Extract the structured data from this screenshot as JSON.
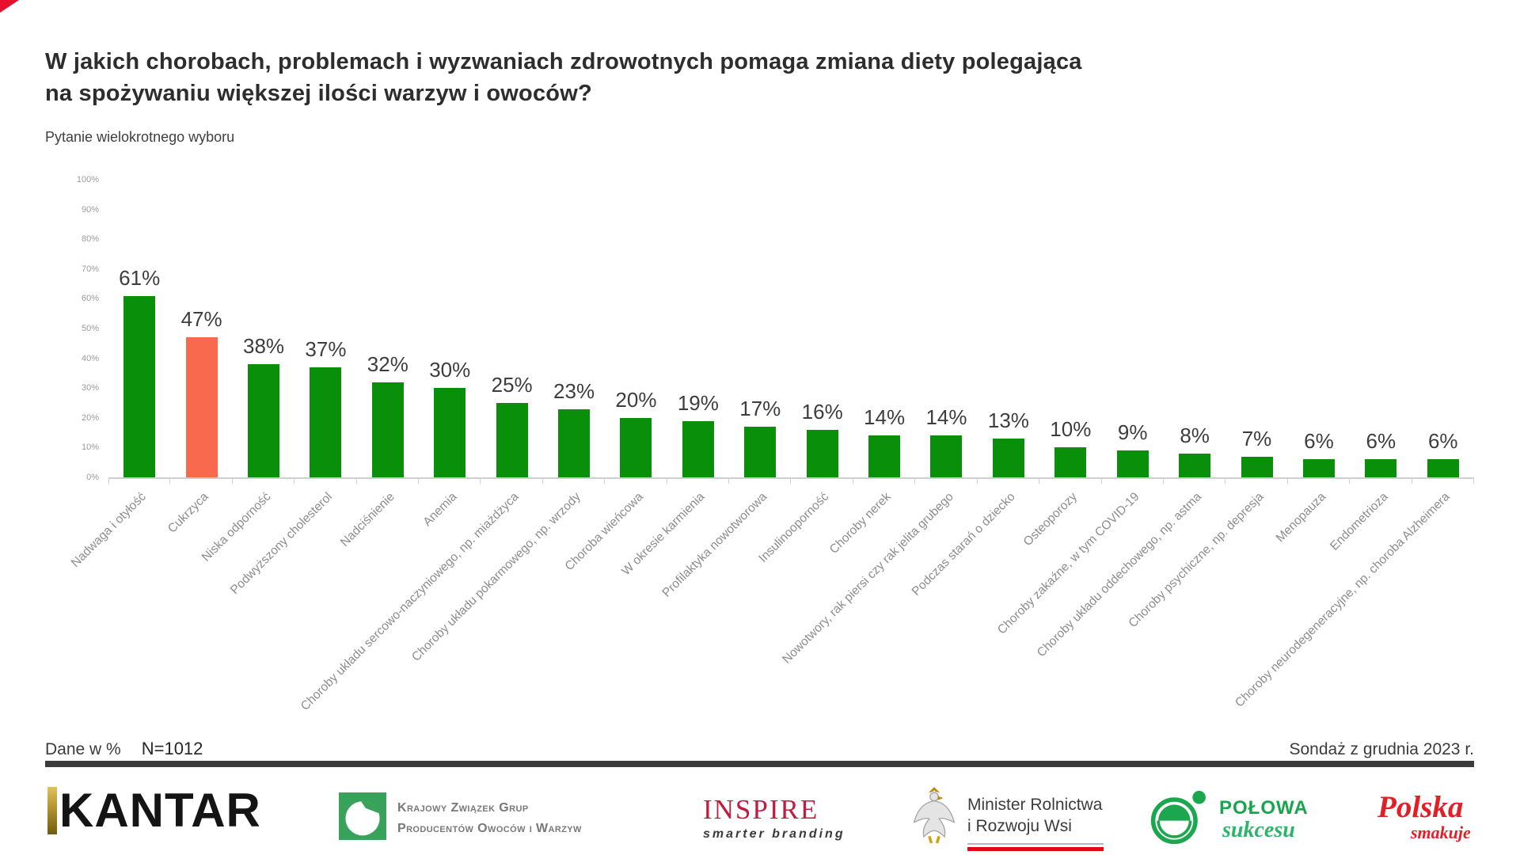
{
  "page": {
    "corner_accent_color": "#e8112d"
  },
  "header": {
    "title_line1": "W jakich chorobach, problemach i wyzwaniach zdrowotnych pomaga zmiana diety polegająca",
    "title_line2": "na spożywaniu większej ilości warzyw i owoców?",
    "subtitle": "Pytanie wielokrotnego wyboru"
  },
  "chart_data": {
    "type": "bar",
    "title": "W jakich chorobach, problemach i wyzwaniach zdrowotnych pomaga zmiana diety polegająca na spożywaniu większej ilości warzyw i owoców?",
    "subtitle": "Pytanie wielokrotnego wyboru",
    "categories": [
      "Nadwaga i otyłość",
      "Cukrzyca",
      "Niska odporność",
      "Podwyższony cholesterol",
      "Nadciśnienie",
      "Anemia",
      "Choroby układu sercowo-naczyniowego, np. miażdżyca",
      "Choroby układu pokarmowego, np. wrzody",
      "Choroba wieńcowa",
      "W okresie karmienia",
      "Profilaktyka nowotworowa",
      "Insulinooporność",
      "Choroby nerek",
      "Nowotwory, rak piersi czy rak jelita grubego",
      "Podczas starań o dziecko",
      "Osteoporozy",
      "Choroby zakaźne, w tym COVID-19",
      "Choroby układu oddechowego, np. astma",
      "Choroby psychiczne, np. depresja",
      "Menopauza",
      "Endometrioza",
      "Choroby neurodegeneracyjne, np. choroba Alzheimera"
    ],
    "values": [
      61,
      47,
      38,
      37,
      32,
      30,
      25,
      23,
      20,
      19,
      17,
      16,
      14,
      14,
      13,
      10,
      9,
      8,
      7,
      6,
      6,
      6
    ],
    "value_suffix": "%",
    "highlight_index": 1,
    "colors": {
      "default": "#0a8f0a",
      "highlight": "#f8694e"
    },
    "ylim": [
      0,
      100
    ],
    "y_ticks": [
      "100%",
      "90%",
      "80%",
      "70%",
      "60%",
      "50%",
      "40%",
      "30%",
      "20%",
      "10%",
      "0%"
    ],
    "xlabel": "",
    "ylabel": "",
    "grid": false,
    "legend": false
  },
  "footer": {
    "note_left": "Dane w %",
    "sample_size": "N=1012",
    "note_right": "Sondaż z grudnia 2023 r."
  },
  "logos": {
    "kantar": "KANTAR",
    "kzg": {
      "line1": "Krajowy Związek Grup",
      "line2": "Producentów Owoców i Warzyw"
    },
    "inspire": {
      "wordmark": "INSPIRE",
      "tagline": "smarter branding"
    },
    "minister": {
      "line1": "Minister Rolnictwa",
      "line2": "i Rozwoju Wsi"
    },
    "polowa": {
      "line1": "POŁOWA",
      "line2": "sukcesu"
    },
    "polska": {
      "line1": "Polska",
      "line2": "smakuje"
    }
  }
}
